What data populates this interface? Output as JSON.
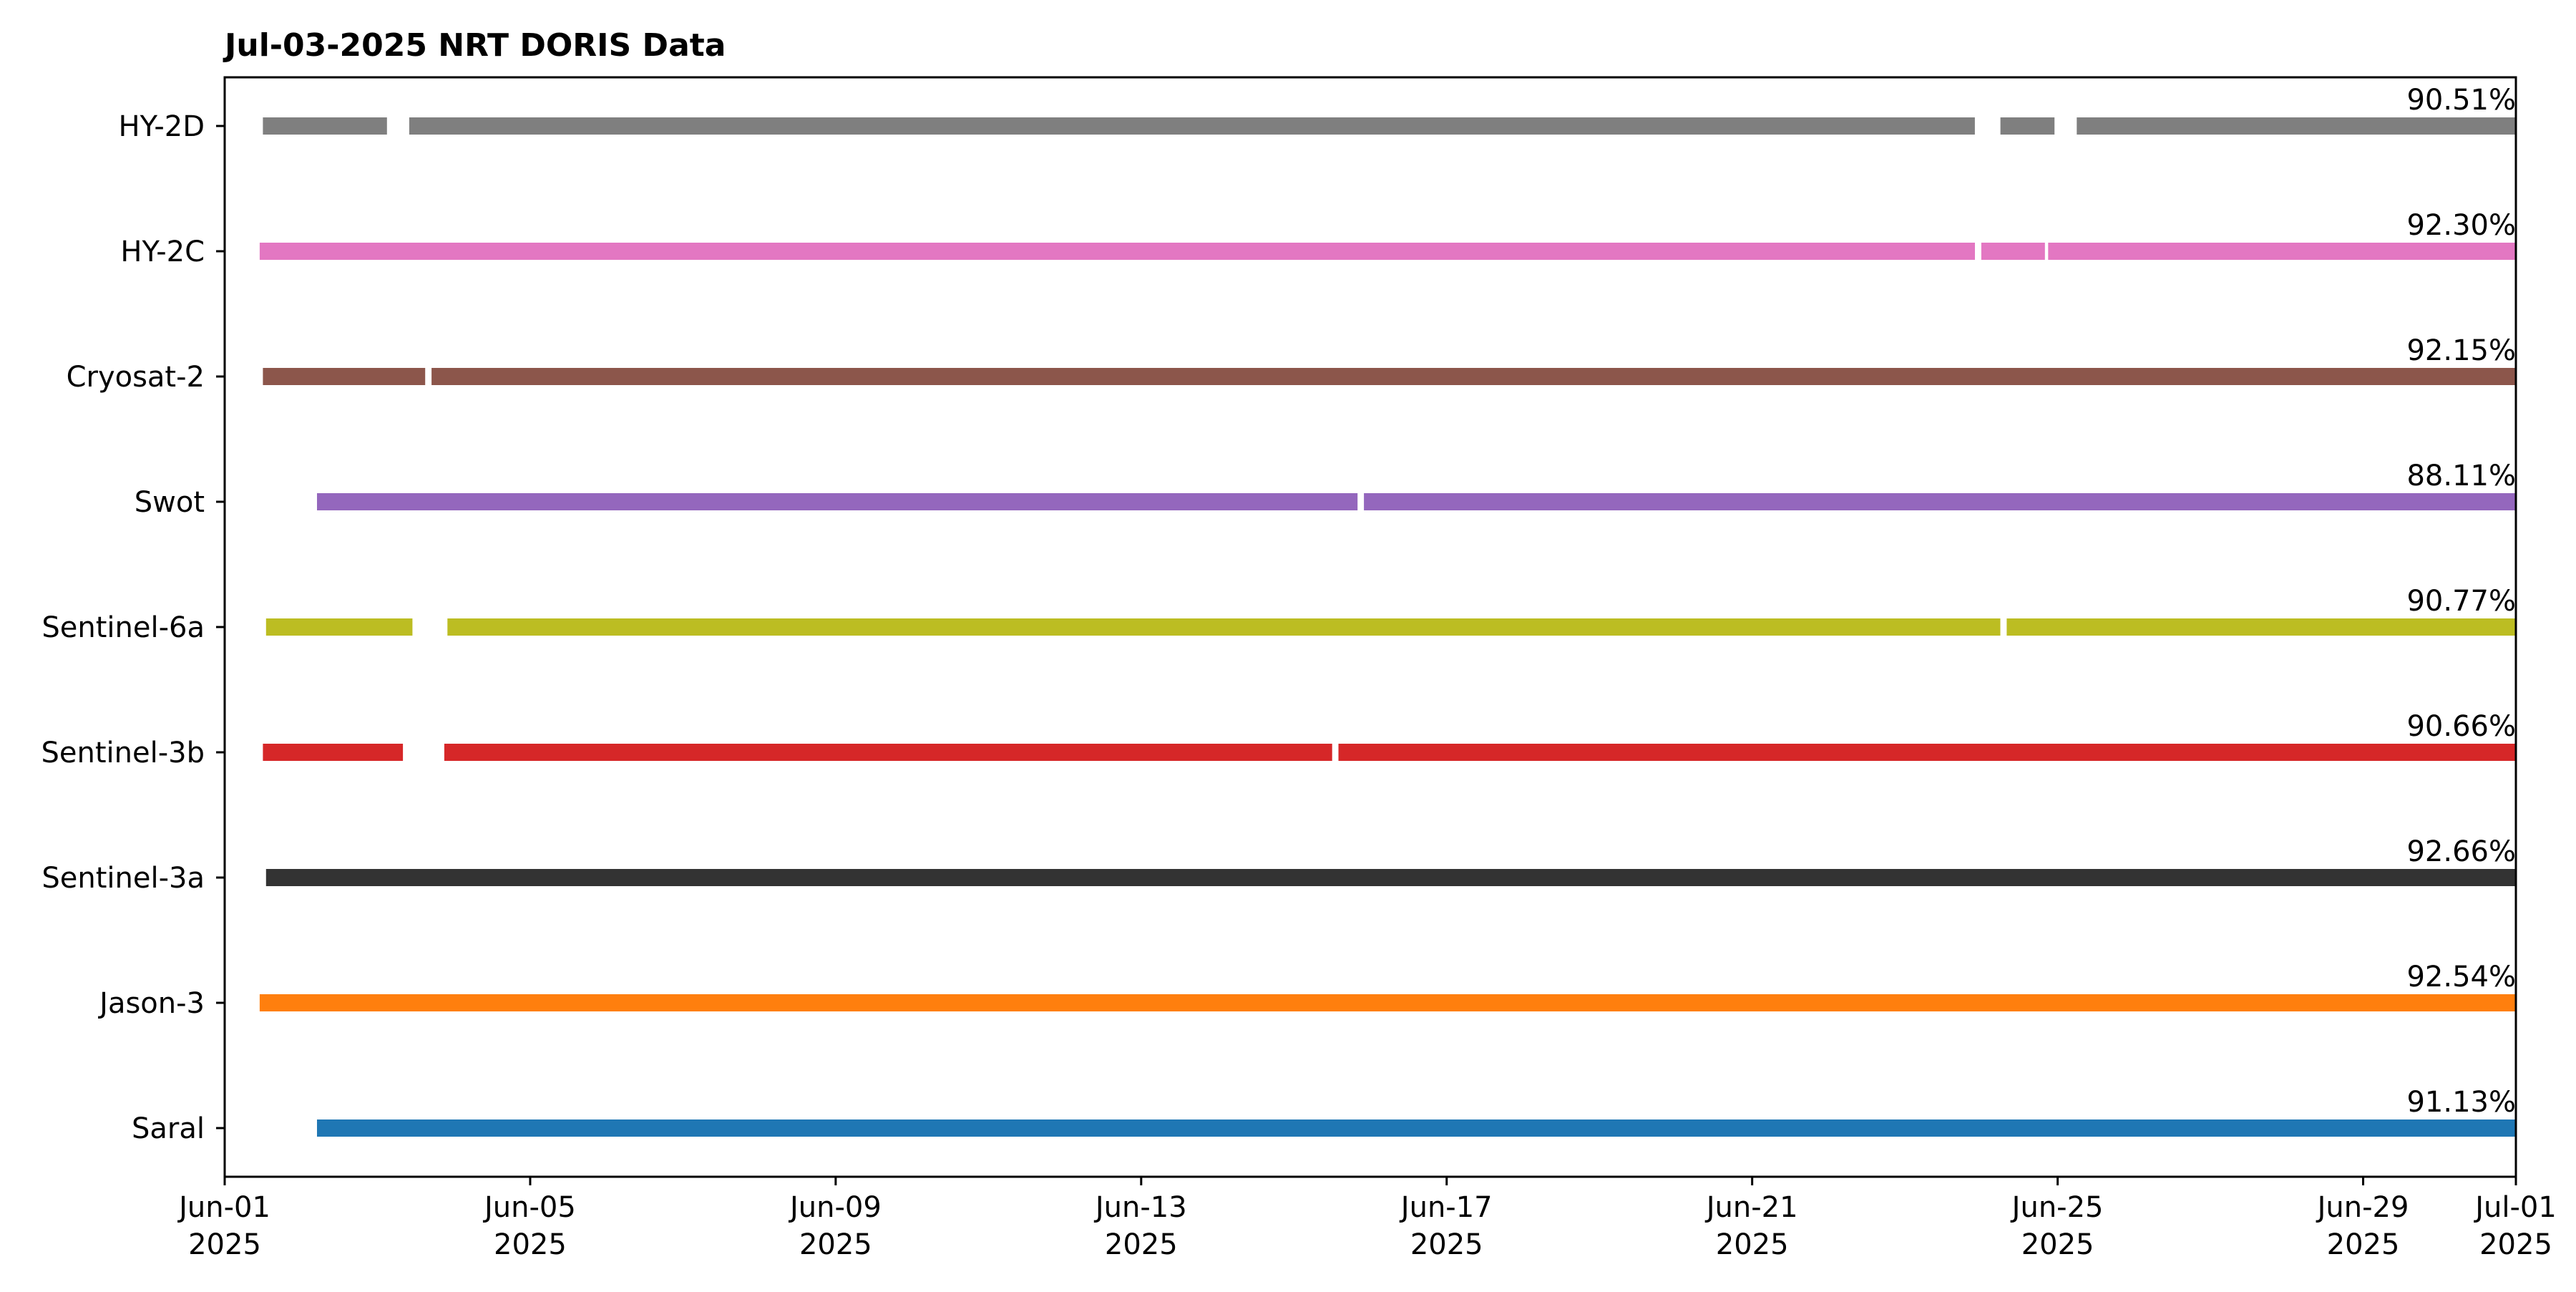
{
  "chart_data": {
    "type": "bar",
    "title": "Jul-03-2025 NRT DORIS Data",
    "xlabel": "",
    "ylabel": "",
    "x_axis": {
      "range": [
        "2025-06-01",
        "2025-07-01"
      ],
      "ticks": [
        {
          "date": "2025-06-01",
          "label1": "Jun-01",
          "label2": "2025"
        },
        {
          "date": "2025-06-05",
          "label1": "Jun-05",
          "label2": "2025"
        },
        {
          "date": "2025-06-09",
          "label1": "Jun-09",
          "label2": "2025"
        },
        {
          "date": "2025-06-13",
          "label1": "Jun-13",
          "label2": "2025"
        },
        {
          "date": "2025-06-17",
          "label1": "Jun-17",
          "label2": "2025"
        },
        {
          "date": "2025-06-21",
          "label1": "Jun-21",
          "label2": "2025"
        },
        {
          "date": "2025-06-25",
          "label1": "Jun-25",
          "label2": "2025"
        },
        {
          "date": "2025-06-29",
          "label1": "Jun-29",
          "label2": "2025"
        },
        {
          "date": "2025-07-01",
          "label1": "Jul-01",
          "label2": "2025"
        }
      ]
    },
    "grid": false,
    "series": [
      {
        "name": "Saral",
        "color": "#1f77b4",
        "percent": "91.13%",
        "segments": [
          [
            "2025-06-02 05:00",
            "2025-07-01 00:00"
          ]
        ]
      },
      {
        "name": "Jason-3",
        "color": "#ff7f0e",
        "percent": "92.54%",
        "segments": [
          [
            "2025-06-01 11:00",
            "2025-07-01 00:00"
          ]
        ]
      },
      {
        "name": "Sentinel-3a",
        "color": "#333333",
        "percent": "92.66%",
        "segments": [
          [
            "2025-06-01 13:00",
            "2025-07-01 00:00"
          ]
        ]
      },
      {
        "name": "Sentinel-3b",
        "color": "#d62728",
        "percent": "90.66%",
        "segments": [
          [
            "2025-06-01 12:00",
            "2025-06-03 08:00"
          ],
          [
            "2025-06-03 21:00",
            "2025-06-15 12:00"
          ],
          [
            "2025-06-15 14:00",
            "2025-07-01 00:00"
          ]
        ]
      },
      {
        "name": "Sentinel-6a",
        "color": "#bcbd22",
        "percent": "90.77%",
        "segments": [
          [
            "2025-06-01 13:00",
            "2025-06-03 11:00"
          ],
          [
            "2025-06-03 22:00",
            "2025-06-24 06:00"
          ],
          [
            "2025-06-24 08:00",
            "2025-07-01 00:00"
          ]
        ]
      },
      {
        "name": "Swot",
        "color": "#9467bd",
        "percent": "88.11%",
        "segments": [
          [
            "2025-06-02 05:00",
            "2025-06-15 20:00"
          ],
          [
            "2025-06-15 22:00",
            "2025-07-01 00:00"
          ]
        ]
      },
      {
        "name": "Cryosat-2",
        "color": "#8c564b",
        "percent": "92.15%",
        "segments": [
          [
            "2025-06-01 12:00",
            "2025-06-03 15:00"
          ],
          [
            "2025-06-03 17:00",
            "2025-07-01 00:00"
          ]
        ]
      },
      {
        "name": "HY-2C",
        "color": "#e377c2",
        "percent": "92.30%",
        "segments": [
          [
            "2025-06-01 11:00",
            "2025-06-23 22:00"
          ],
          [
            "2025-06-24 00:00",
            "2025-06-24 20:00"
          ],
          [
            "2025-06-24 21:00",
            "2025-07-01 00:00"
          ]
        ]
      },
      {
        "name": "HY-2D",
        "color": "#7f7f7f",
        "percent": "90.51%",
        "segments": [
          [
            "2025-06-01 12:00",
            "2025-06-03 03:00"
          ],
          [
            "2025-06-03 10:00",
            "2025-06-23 22:00"
          ],
          [
            "2025-06-24 06:00",
            "2025-06-24 23:00"
          ],
          [
            "2025-06-25 06:00",
            "2025-07-01 00:00"
          ]
        ]
      }
    ]
  }
}
